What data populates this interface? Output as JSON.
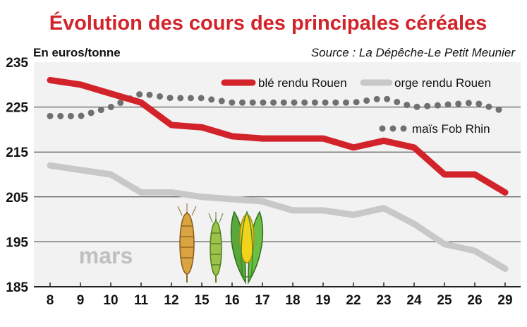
{
  "chart_data": {
    "type": "line",
    "title": "Évolution des cours des principales céréales",
    "ylabel": "En euros/tonne",
    "source": "Source : La Dépêche-Le Petit Meunier",
    "month_label": "mars",
    "categories": [
      "8",
      "9",
      "10",
      "11",
      "12",
      "15",
      "16",
      "17",
      "18",
      "19",
      "22",
      "23",
      "24",
      "25",
      "26",
      "29"
    ],
    "yticks": [
      "235",
      "225",
      "215",
      "205",
      "195",
      "185"
    ],
    "ylim": [
      185,
      235
    ],
    "grid": true,
    "legend_position": "top-right",
    "series": [
      {
        "name": "blé rendu Rouen",
        "color": "#d2232a",
        "style": "solid",
        "values": [
          231,
          230,
          228,
          226,
          221,
          220.5,
          218.5,
          218,
          218,
          218,
          216,
          217.5,
          216,
          210,
          210,
          206
        ]
      },
      {
        "name": "orge rendu Rouen",
        "color": "#c8c8c8",
        "style": "solid",
        "values": [
          212,
          211,
          210,
          206,
          206,
          205,
          204.5,
          204,
          202,
          202,
          201,
          202.5,
          199,
          194.5,
          193,
          189
        ]
      },
      {
        "name": "maïs Fob Rhin",
        "color": "#707070",
        "style": "dotted",
        "values": [
          223,
          223,
          225,
          228,
          227,
          227,
          226,
          226,
          226,
          226,
          226,
          227,
          225,
          225.5,
          226,
          224
        ]
      }
    ]
  },
  "colors": {
    "title": "#d2232a",
    "plot_background": "#f2f2f2",
    "grid": "#333333",
    "axis": "#222222",
    "month_label": "#c0c0c0"
  },
  "icons": [
    "wheat-ear-icon",
    "barley-ear-icon",
    "corn-cob-icon"
  ]
}
